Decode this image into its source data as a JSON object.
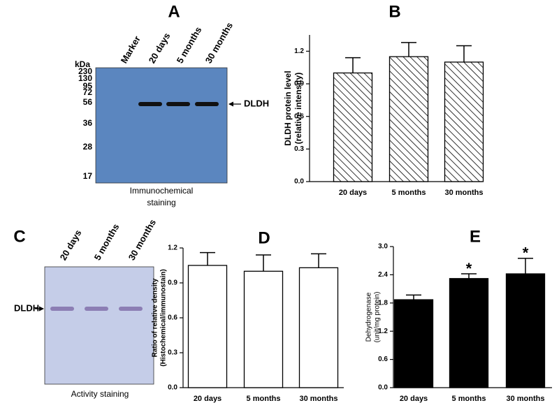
{
  "blots": [
    {
      "panel_label": "A",
      "lanes": [
        "Marker",
        "20 days",
        "5 months",
        "30 months"
      ],
      "mw_unit": "kDa",
      "markers": [
        230,
        130,
        95,
        72,
        56,
        36,
        28,
        17
      ],
      "band_label": "DLDH",
      "caption": [
        "Immunochemical",
        "staining"
      ]
    },
    {
      "panel_label": "C",
      "lanes": [
        "20 days",
        "5 months",
        "30 months"
      ],
      "band_label": "DLDH",
      "caption": [
        "Activity staining"
      ]
    }
  ],
  "chart_data": [
    {
      "type": "bar",
      "panel_label": "B",
      "ylabel": [
        "DLDH protein level",
        "(relative intensity)"
      ],
      "categories": [
        "20 days",
        "5 months",
        "30 months"
      ],
      "values": [
        1.0,
        1.15,
        1.1
      ],
      "errors": [
        0.14,
        0.13,
        0.15
      ],
      "color": "#ffffff",
      "hatch": true,
      "ylim": [
        0,
        1.35
      ],
      "yticks": [
        {
          "value": 0,
          "label": "0.0"
        },
        0.3,
        0.6,
        0.9,
        1.2
      ]
    },
    {
      "type": "bar",
      "panel_label": "D",
      "ylabel": [
        "Ratio of relative density",
        "(Histochemical/immunostain)"
      ],
      "categories": [
        "20 days",
        "5 months",
        "30 months"
      ],
      "values": [
        1.05,
        1.0,
        1.03
      ],
      "errors": [
        0.11,
        0.14,
        0.12
      ],
      "color": "#ffffff",
      "hatch": false,
      "ylim": [
        0,
        1.2
      ],
      "yticks": [
        {
          "value": 0,
          "label": "0.0"
        },
        0.3,
        0.6,
        0.9,
        1.2
      ]
    },
    {
      "type": "bar",
      "panel_label": "E",
      "ylabel": [
        "Dehydrogenase",
        "(unit/mg protein)"
      ],
      "categories": [
        "20 days",
        "5 months",
        "30 months"
      ],
      "values": [
        1.87,
        2.32,
        2.42
      ],
      "errors": [
        0.1,
        0.1,
        0.33
      ],
      "annotations": [
        null,
        "*",
        "*"
      ],
      "color": "#000000",
      "hatch": false,
      "ylim": [
        0,
        3.0
      ],
      "yticks": [
        {
          "value": 0,
          "label": "0.0"
        },
        0.6,
        1.2,
        1.8,
        2.4,
        {
          "value": 3.0,
          "label": "3.0"
        }
      ]
    }
  ]
}
